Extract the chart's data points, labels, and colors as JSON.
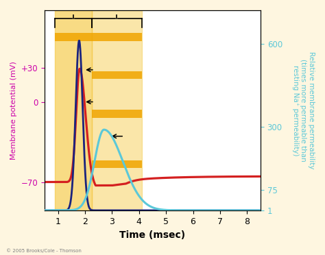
{
  "xlabel": "Time (msec)",
  "ylabel_left": "Membrane potential (mV)",
  "ylabel_right": "Relative membrane permeability\n(times more permeable than\nresting Na⁺ permeability)",
  "xlim": [
    0.5,
    8.5
  ],
  "ylim_left": [
    -95,
    80
  ],
  "ylim_right": [
    0,
    720
  ],
  "yticks_left": [
    -70,
    0,
    30
  ],
  "yticks_right": [
    1,
    75,
    300,
    600
  ],
  "xticks": [
    1,
    2,
    3,
    4,
    5,
    6,
    7,
    8
  ],
  "bg_color": "#FEF6E0",
  "plot_bg_color": "white",
  "shaded_region1_start": 0.88,
  "shaded_region1_end": 2.25,
  "shaded_region2_start": 2.25,
  "shaded_region2_end": 4.1,
  "shade_color": "#F5C842",
  "shade_alpha1": 0.65,
  "shade_alpha2": 0.45,
  "red_line_color": "#D42020",
  "dark_blue_color": "#1a237e",
  "light_blue_color": "#5BC8D8",
  "left_label_color": "#CC00AA",
  "right_label_color": "#5BC8D8",
  "copyright": "© 2005 Brooks/Cole - Thomson",
  "e_bar_color": "#F0A500",
  "e_bar_alpha": 0.85
}
